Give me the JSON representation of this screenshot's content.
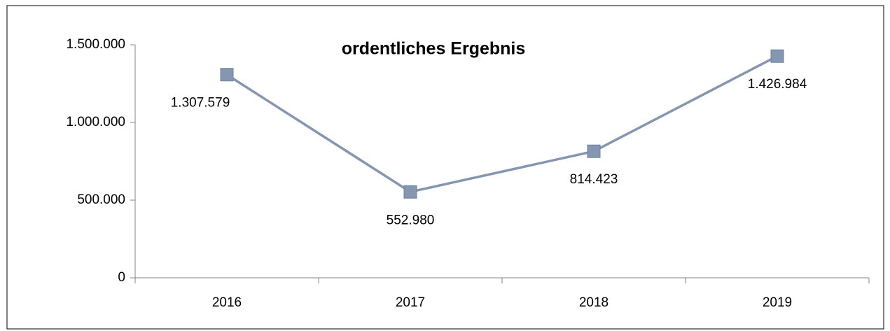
{
  "chart_data": {
    "type": "line",
    "title": "ordentliches Ergebnis",
    "categories": [
      "2016",
      "2017",
      "2018",
      "2019"
    ],
    "values": [
      1307579,
      552980,
      814423,
      1426984
    ],
    "value_labels": [
      "1.307.579",
      "552.980",
      "814.423",
      "1.426.984"
    ],
    "color": "#8496b0",
    "ylim": [
      0,
      1500000
    ],
    "yticks": [
      0,
      {
        "value": 500000,
        "label": "500.000"
      },
      {
        "value": 1000000,
        "label": "1.000.000"
      },
      {
        "value": 1500000,
        "label": "1.500.000"
      }
    ],
    "grid": false
  }
}
